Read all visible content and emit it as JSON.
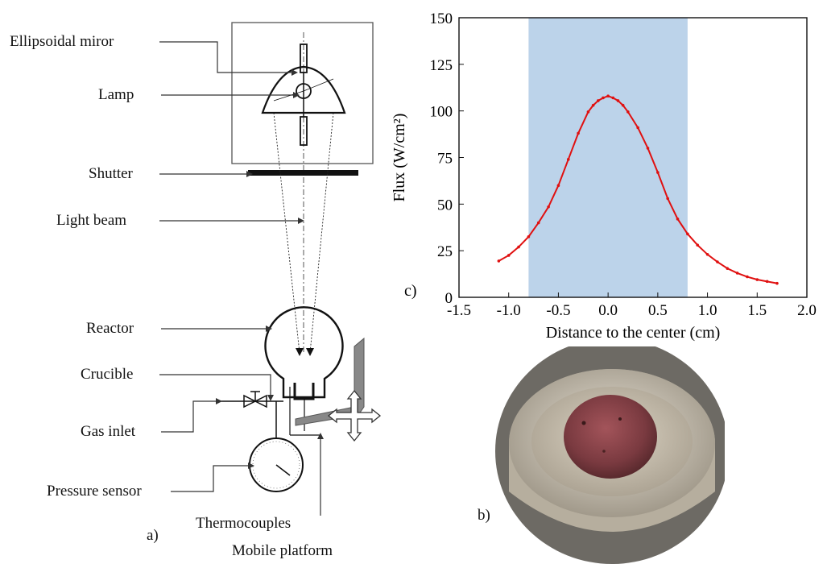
{
  "schematic": {
    "labels": {
      "ellipsoidal_mirror": "Ellipsoidal miror",
      "lamp": "Lamp",
      "shutter": "Shutter",
      "light_beam": "Light beam",
      "reactor": "Reactor",
      "crucible": "Crucible",
      "gas_inlet": "Gas inlet",
      "pressure_sensor": "Pressure sensor",
      "thermocouples": "Thermocouples",
      "mobile_platform": "Mobile platform"
    },
    "panel_label": "a)"
  },
  "photo": {
    "panel_label": "b)"
  },
  "chart_data": {
    "type": "line",
    "panel_label": "c)",
    "xlabel": "Distance to the center (cm)",
    "ylabel": "Flux (W/cm²)",
    "xlim": [
      -1.5,
      2.0
    ],
    "ylim": [
      0,
      150
    ],
    "xticks": [
      "-1.5",
      "-1.0",
      "-0.5",
      "0.0",
      "0.5",
      "1.0",
      "1.5",
      "2.0"
    ],
    "yticks": [
      "0",
      "25",
      "50",
      "75",
      "100",
      "125",
      "150"
    ],
    "shaded_region": [
      -0.8,
      0.8
    ],
    "colors": {
      "line": "#e01010",
      "shade": "#bcd3ea"
    },
    "series": [
      {
        "x": [
          -1.1,
          -1.0,
          -0.9,
          -0.8,
          -0.7,
          -0.6,
          -0.5,
          -0.4,
          -0.3,
          -0.2,
          -0.15,
          -0.1,
          -0.05,
          0.0,
          0.05,
          0.1,
          0.15,
          0.2,
          0.3,
          0.4,
          0.5,
          0.6,
          0.7,
          0.8,
          0.9,
          1.0,
          1.1,
          1.2,
          1.3,
          1.4,
          1.5,
          1.6,
          1.7
        ],
        "y": [
          19.5,
          22.5,
          27,
          32.5,
          40,
          48.5,
          60,
          74,
          88,
          99.5,
          103,
          105.5,
          107,
          108,
          107,
          105.5,
          103,
          99.5,
          91,
          80,
          67,
          53,
          42,
          34,
          28,
          23,
          19,
          15.5,
          13,
          11,
          9.5,
          8.5,
          7.5
        ]
      }
    ]
  }
}
